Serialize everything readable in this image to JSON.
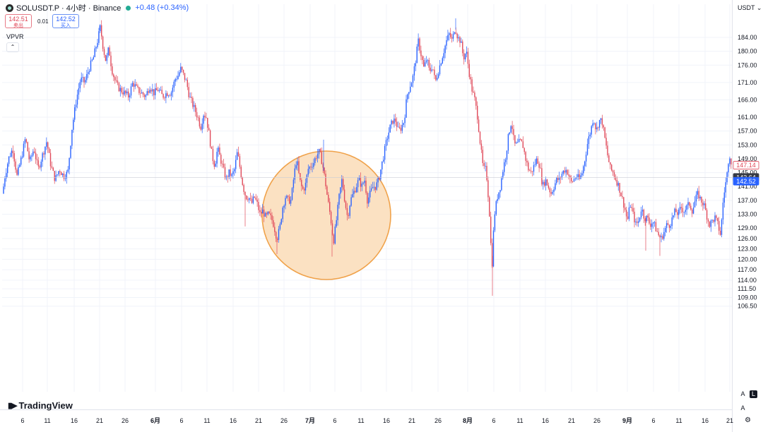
{
  "header": {
    "symbol_title": "SOLUSDT.P · 4小时 · Binance",
    "change": "+0.48 (+0.34%)",
    "sell_price": "142.51",
    "sell_label": "卖出",
    "buy_price": "142.52",
    "buy_label": "买入",
    "spread": "0.01",
    "indicator": "VPVR",
    "currency": "USDT"
  },
  "logo_text": "TradingView",
  "controls": {
    "auto_label": "A",
    "log_label": "L"
  },
  "colors": {
    "up": "#2962ff",
    "down": "#e04a5a",
    "highlight_fill": "#fbe1c2",
    "highlight_stroke": "#f0a24a",
    "last_price_bg": "#2962ff",
    "crosshair_bg": "#363a45"
  },
  "chart_data": {
    "type": "candlestick",
    "title": "",
    "ylim": [
      104,
      190
    ],
    "y_ticks": [
      184,
      180,
      176,
      171,
      166,
      161,
      157,
      153,
      149,
      145,
      141,
      137,
      133,
      129,
      126,
      123,
      120,
      117,
      114,
      111.5,
      109,
      106.5
    ],
    "x_ticks": [
      "6",
      "11",
      "16",
      "21",
      "26",
      "6月",
      "6",
      "11",
      "16",
      "21",
      "26",
      "7月",
      "6",
      "11",
      "16",
      "21",
      "26",
      "8月",
      "6",
      "11",
      "16",
      "21",
      "26",
      "9月",
      "6",
      "11",
      "16",
      "21"
    ],
    "price_labels": [
      {
        "value": 147.14,
        "text": "147.14",
        "style": "outline-red"
      },
      {
        "value": 143.64,
        "text": "143.64",
        "style": "dark"
      },
      {
        "value": 142.52,
        "text": "142.52",
        "style": "blue"
      }
    ],
    "series": [
      {
        "name": "price",
        "keypoints": [
          [
            0,
            131
          ],
          [
            6,
            143
          ],
          [
            12,
            149
          ],
          [
            18,
            152
          ],
          [
            24,
            144
          ],
          [
            30,
            149
          ],
          [
            36,
            155
          ],
          [
            42,
            148
          ],
          [
            48,
            152
          ],
          [
            54,
            146
          ],
          [
            60,
            150
          ],
          [
            66,
            154
          ],
          [
            72,
            147
          ],
          [
            78,
            143
          ],
          [
            84,
            146
          ],
          [
            90,
            144
          ],
          [
            96,
            145
          ],
          [
            102,
            158
          ],
          [
            108,
            166
          ],
          [
            114,
            172
          ],
          [
            120,
            171
          ],
          [
            126,
            175
          ],
          [
            132,
            178
          ],
          [
            138,
            183
          ],
          [
            142,
            187
          ],
          [
            146,
            181
          ],
          [
            150,
            177
          ],
          [
            154,
            181
          ],
          [
            158,
            175
          ],
          [
            162,
            172
          ],
          [
            166,
            170
          ],
          [
            170,
            169
          ],
          [
            176,
            168
          ],
          [
            182,
            167
          ],
          [
            188,
            171
          ],
          [
            194,
            169
          ],
          [
            200,
            168
          ],
          [
            206,
            167
          ],
          [
            212,
            170
          ],
          [
            218,
            168
          ],
          [
            224,
            169
          ],
          [
            230,
            167
          ],
          [
            236,
            168
          ],
          [
            242,
            168
          ],
          [
            248,
            172
          ],
          [
            252,
            173
          ],
          [
            256,
            175
          ],
          [
            260,
            173
          ],
          [
            264,
            171
          ],
          [
            268,
            167
          ],
          [
            272,
            165
          ],
          [
            276,
            163
          ],
          [
            280,
            161
          ],
          [
            284,
            158
          ],
          [
            288,
            162
          ],
          [
            292,
            161
          ],
          [
            296,
            156
          ],
          [
            300,
            150
          ],
          [
            304,
            147
          ],
          [
            308,
            152
          ],
          [
            312,
            149
          ],
          [
            316,
            146
          ],
          [
            320,
            143
          ],
          [
            324,
            145
          ],
          [
            328,
            144
          ],
          [
            332,
            146
          ],
          [
            336,
            151
          ],
          [
            340,
            146
          ],
          [
            344,
            141
          ],
          [
            348,
            138
          ],
          [
            352,
            138
          ],
          [
            356,
            136
          ],
          [
            360,
            138
          ],
          [
            364,
            136
          ],
          [
            368,
            133
          ],
          [
            372,
            134
          ],
          [
            376,
            132
          ],
          [
            380,
            133
          ],
          [
            386,
            131
          ],
          [
            392,
            126
          ],
          [
            396,
            129
          ],
          [
            400,
            135
          ],
          [
            404,
            138
          ],
          [
            408,
            137
          ],
          [
            412,
            137
          ],
          [
            416,
            144
          ],
          [
            420,
            149
          ],
          [
            424,
            143
          ],
          [
            428,
            140
          ],
          [
            432,
            141
          ],
          [
            436,
            146
          ],
          [
            440,
            147
          ],
          [
            444,
            148
          ],
          [
            448,
            150
          ],
          [
            452,
            151
          ],
          [
            456,
            148
          ],
          [
            460,
            143
          ],
          [
            464,
            137
          ],
          [
            468,
            132
          ],
          [
            472,
            125
          ],
          [
            476,
            131
          ],
          [
            480,
            138
          ],
          [
            484,
            143
          ],
          [
            488,
            137
          ],
          [
            492,
            132
          ],
          [
            496,
            137
          ],
          [
            500,
            139
          ],
          [
            504,
            141
          ],
          [
            508,
            143
          ],
          [
            512,
            141
          ],
          [
            516,
            143
          ],
          [
            520,
            137
          ],
          [
            524,
            139
          ],
          [
            528,
            141
          ],
          [
            532,
            141
          ],
          [
            536,
            143
          ],
          [
            540,
            147
          ],
          [
            544,
            151
          ],
          [
            548,
            155
          ],
          [
            552,
            158
          ],
          [
            556,
            160
          ],
          [
            560,
            160
          ],
          [
            564,
            157
          ],
          [
            568,
            158
          ],
          [
            572,
            160
          ],
          [
            576,
            167
          ],
          [
            580,
            170
          ],
          [
            584,
            172
          ],
          [
            588,
            177
          ],
          [
            592,
            183
          ],
          [
            596,
            179
          ],
          [
            600,
            175
          ],
          [
            604,
            178
          ],
          [
            608,
            174
          ],
          [
            612,
            176
          ],
          [
            616,
            171
          ],
          [
            620,
            174
          ],
          [
            624,
            177
          ],
          [
            628,
            180
          ],
          [
            632,
            183
          ],
          [
            636,
            185
          ],
          [
            640,
            183
          ],
          [
            644,
            187
          ],
          [
            648,
            184
          ],
          [
            652,
            183
          ],
          [
            656,
            178
          ],
          [
            660,
            180
          ],
          [
            664,
            174
          ],
          [
            668,
            169
          ],
          [
            672,
            166
          ],
          [
            676,
            161
          ],
          [
            680,
            153
          ],
          [
            684,
            146
          ],
          [
            688,
            146
          ],
          [
            692,
            136
          ],
          [
            694,
            129
          ],
          [
            696,
            116
          ],
          [
            698,
            126
          ],
          [
            700,
            133
          ],
          [
            704,
            138
          ],
          [
            708,
            141
          ],
          [
            712,
            146
          ],
          [
            716,
            150
          ],
          [
            720,
            156
          ],
          [
            724,
            160
          ],
          [
            728,
            153
          ],
          [
            732,
            153
          ],
          [
            736,
            154
          ],
          [
            740,
            153
          ],
          [
            744,
            149
          ],
          [
            748,
            146
          ],
          [
            752,
            145
          ],
          [
            756,
            147
          ],
          [
            760,
            149
          ],
          [
            764,
            147
          ],
          [
            768,
            141
          ],
          [
            772,
            143
          ],
          [
            776,
            141
          ],
          [
            780,
            139
          ],
          [
            784,
            141
          ],
          [
            788,
            143
          ],
          [
            792,
            143
          ],
          [
            796,
            145
          ],
          [
            800,
            146
          ],
          [
            804,
            145
          ],
          [
            808,
            142
          ],
          [
            812,
            143
          ],
          [
            816,
            144
          ],
          [
            820,
            143
          ],
          [
            824,
            145
          ],
          [
            828,
            149
          ],
          [
            832,
            154
          ],
          [
            836,
            157
          ],
          [
            840,
            161
          ],
          [
            844,
            157
          ],
          [
            848,
            160
          ],
          [
            852,
            160
          ],
          [
            856,
            155
          ],
          [
            860,
            150
          ],
          [
            864,
            146
          ],
          [
            868,
            145
          ],
          [
            872,
            143
          ],
          [
            876,
            141
          ],
          [
            880,
            138
          ],
          [
            884,
            135
          ],
          [
            888,
            131
          ],
          [
            892,
            136
          ],
          [
            896,
            133
          ],
          [
            900,
            130
          ],
          [
            904,
            131
          ],
          [
            908,
            135
          ],
          [
            912,
            132
          ],
          [
            916,
            132
          ],
          [
            920,
            130
          ],
          [
            924,
            131
          ],
          [
            928,
            129
          ],
          [
            932,
            127
          ],
          [
            936,
            126
          ],
          [
            940,
            128
          ],
          [
            944,
            130
          ],
          [
            948,
            130
          ],
          [
            952,
            132
          ],
          [
            956,
            134
          ],
          [
            960,
            133
          ],
          [
            964,
            135
          ],
          [
            968,
            134
          ],
          [
            972,
            135
          ],
          [
            976,
            136
          ],
          [
            980,
            134
          ],
          [
            984,
            137
          ],
          [
            988,
            139
          ],
          [
            992,
            137
          ],
          [
            996,
            136
          ],
          [
            1000,
            133
          ],
          [
            1004,
            130
          ],
          [
            1008,
            131
          ],
          [
            1012,
            132
          ],
          [
            1016,
            130
          ],
          [
            1020,
            127
          ],
          [
            1024,
            138
          ],
          [
            1028,
            143
          ],
          [
            1030,
            146
          ],
          [
            1032,
            151
          ],
          [
            1034,
            149
          ],
          [
            1036,
            147
          ]
        ]
      }
    ],
    "highlight": {
      "shape": "circle",
      "x_range": [
        "22 6月",
        "13 7月"
      ],
      "y_range": [
        123.5,
        153.5
      ]
    }
  }
}
